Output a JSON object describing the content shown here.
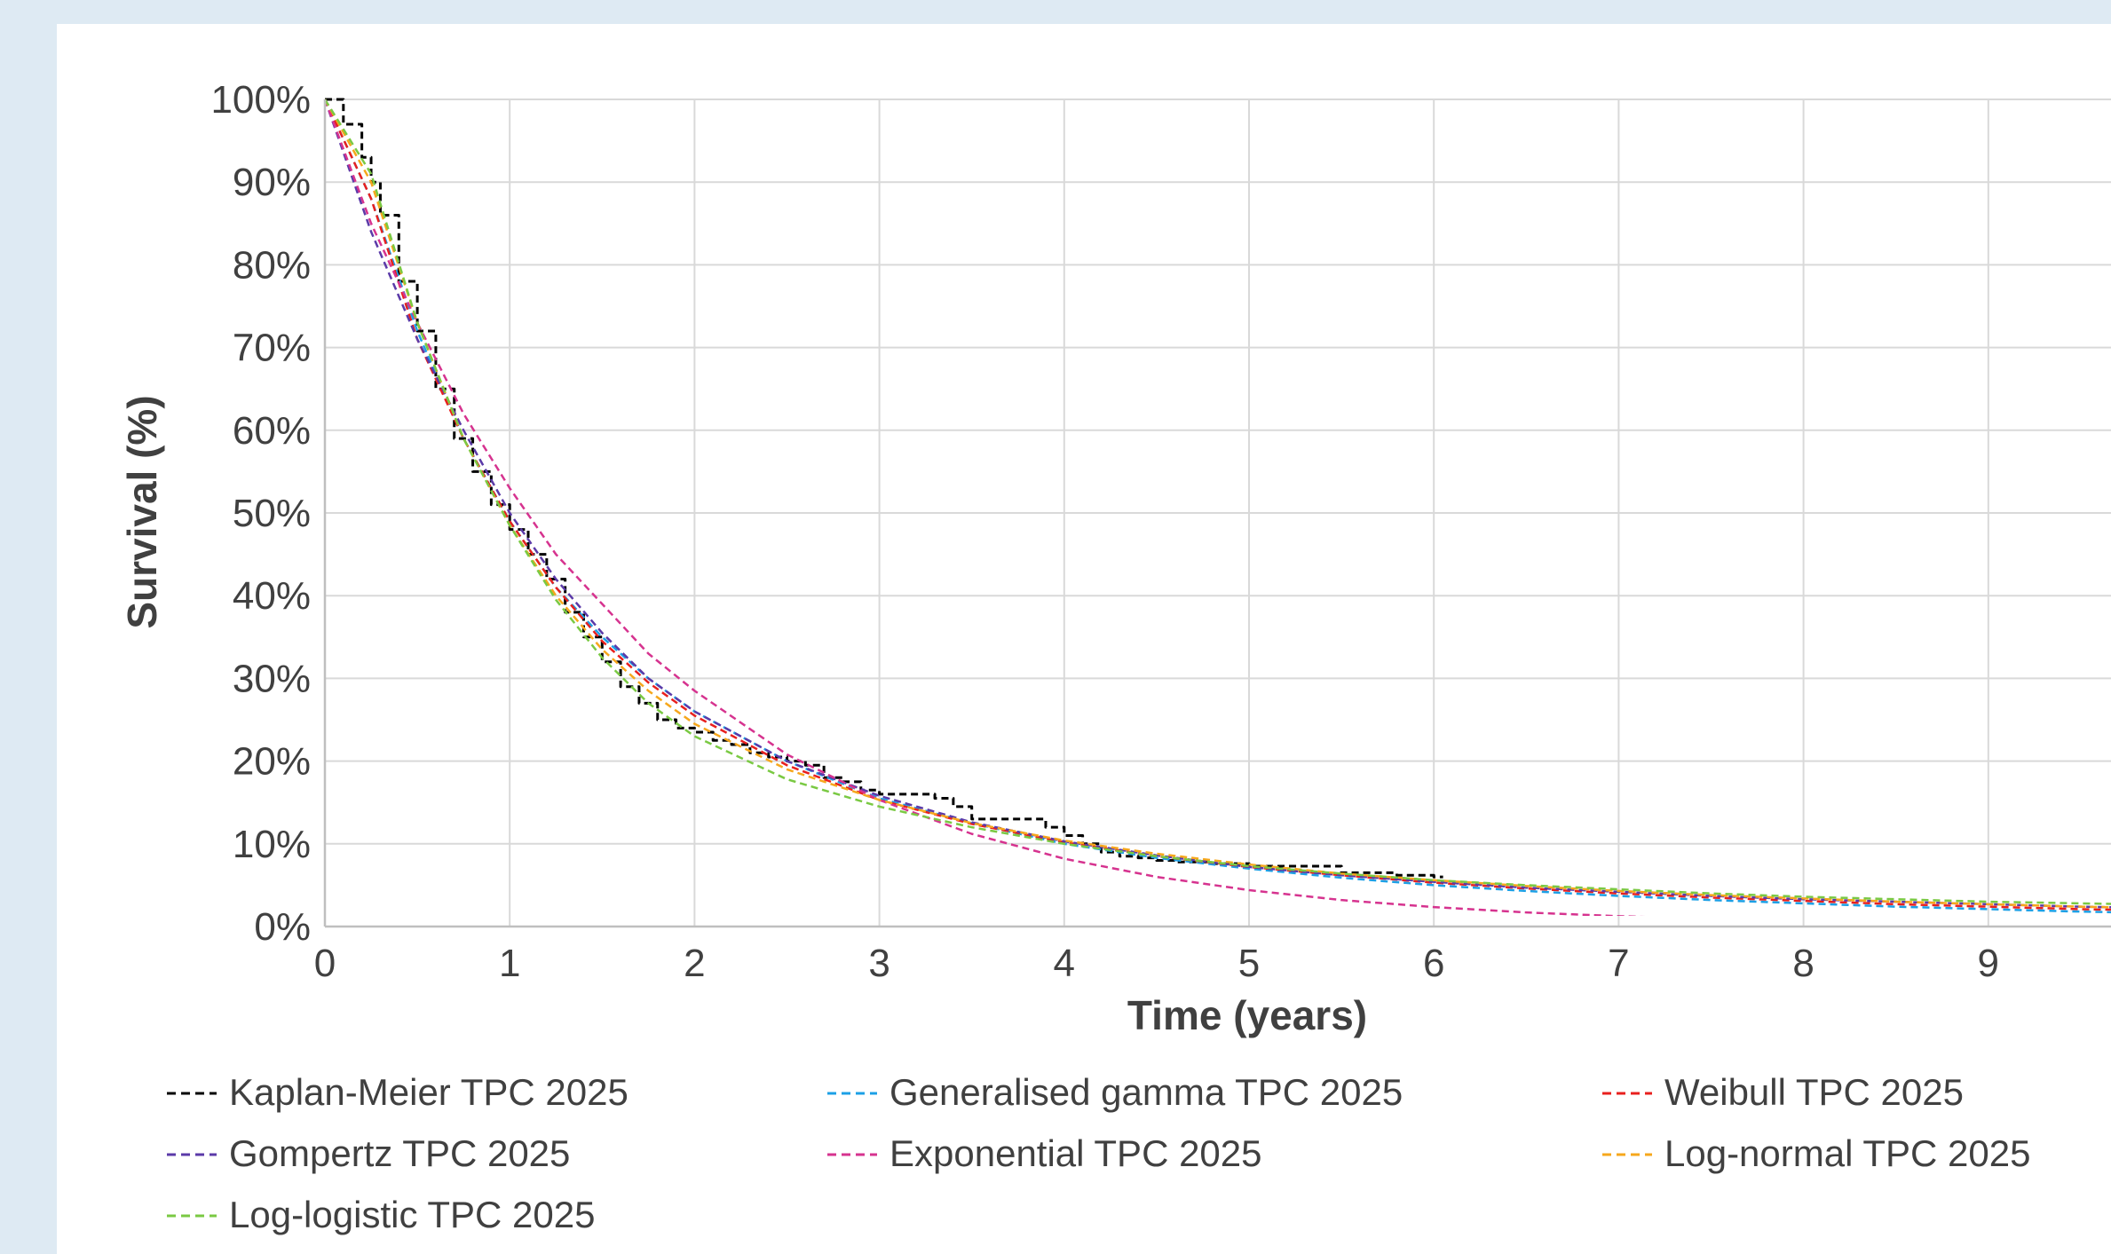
{
  "chart_data": {
    "type": "line",
    "title": "",
    "xlabel": "Time (years)",
    "ylabel": "Survival (%)",
    "xlim": [
      0,
      10
    ],
    "ylim": [
      0,
      100
    ],
    "x_ticks": [
      "0",
      "1",
      "2",
      "3",
      "4",
      "5",
      "6",
      "7",
      "8",
      "9"
    ],
    "y_ticks": [
      "0%",
      "10%",
      "20%",
      "30%",
      "40%",
      "50%",
      "60%",
      "70%",
      "80%",
      "90%",
      "100%"
    ],
    "grid": true,
    "legend_position": "bottom",
    "series": [
      {
        "name": "Kaplan-Meier TPC 2025",
        "color": "#000000",
        "style": "dashed-step",
        "x": [
          0,
          0.1,
          0.2,
          0.25,
          0.3,
          0.4,
          0.5,
          0.6,
          0.7,
          0.8,
          0.9,
          1.0,
          1.1,
          1.2,
          1.3,
          1.4,
          1.5,
          1.6,
          1.7,
          1.8,
          1.9,
          2.0,
          2.1,
          2.2,
          2.3,
          2.4,
          2.5,
          2.6,
          2.7,
          2.8,
          2.9,
          3.0,
          3.1,
          3.2,
          3.3,
          3.4,
          3.5,
          3.6,
          3.7,
          3.8,
          3.9,
          4.0,
          4.1,
          4.2,
          4.3,
          4.4,
          4.5,
          4.6,
          4.8,
          5.0,
          5.2,
          5.4,
          5.5,
          5.8,
          6.0,
          6.05
        ],
        "y": [
          100,
          97,
          93,
          90,
          86,
          78,
          72,
          65,
          59,
          55,
          51,
          48,
          45,
          42,
          38,
          35,
          32,
          29,
          27,
          25,
          24,
          23.5,
          22.5,
          22,
          21,
          20.5,
          20,
          19.5,
          18,
          17.5,
          16.5,
          16,
          16,
          16,
          15.5,
          14.5,
          13,
          13,
          13,
          13,
          12,
          11,
          10,
          9,
          8.5,
          8.3,
          8,
          7.8,
          7.6,
          7.3,
          7.3,
          7.3,
          6.5,
          6.2,
          6.0,
          6.0
        ]
      },
      {
        "name": "Generalised gamma TPC 2025",
        "color": "#1ca0e6",
        "style": "dashed",
        "x": [
          0,
          0.25,
          0.5,
          0.75,
          1,
          1.25,
          1.5,
          1.75,
          2,
          2.5,
          3,
          3.5,
          4,
          4.5,
          5,
          5.5,
          6,
          6.5,
          7,
          7.5,
          8,
          8.5,
          9,
          9.5,
          10
        ],
        "y": [
          100,
          88,
          72,
          59,
          49,
          41,
          35,
          30,
          26,
          20,
          15.5,
          12.5,
          10,
          8.3,
          7,
          5.9,
          5,
          4.3,
          3.7,
          3.2,
          2.8,
          2.4,
          2.1,
          1.8,
          1.6
        ]
      },
      {
        "name": "Weibull TPC 2025",
        "color": "#e8201e",
        "style": "dashed",
        "x": [
          0,
          0.25,
          0.5,
          0.75,
          1,
          1.25,
          1.5,
          1.75,
          2,
          2.5,
          3,
          3.5,
          4,
          4.5,
          5,
          5.5,
          6,
          6.5,
          7,
          7.5,
          8,
          8.5,
          9,
          9.5,
          10
        ],
        "y": [
          100,
          88,
          71,
          59,
          49,
          41,
          34.5,
          29.5,
          25.5,
          19.5,
          15.3,
          12.4,
          10.2,
          8.5,
          7.2,
          6.2,
          5.3,
          4.6,
          4,
          3.5,
          3.1,
          2.7,
          2.4,
          2.1,
          1.9
        ]
      },
      {
        "name": "Gompertz TPC 2025",
        "color": "#5b3aa8",
        "style": "dashed",
        "x": [
          0,
          0.25,
          0.5,
          0.75,
          1,
          1.25,
          1.5,
          1.75,
          2,
          2.5,
          3,
          3.5,
          4,
          4.5,
          5,
          5.5,
          6,
          6.5,
          7,
          7.5,
          8,
          8.5,
          9,
          9.5,
          10
        ],
        "y": [
          100,
          84,
          71,
          60,
          50,
          42,
          35.5,
          30,
          26,
          20,
          15.8,
          12.6,
          10.3,
          8.6,
          7.2,
          6.2,
          5.4,
          4.7,
          4.2,
          3.7,
          3.3,
          3,
          2.7,
          2.4,
          2.2
        ]
      },
      {
        "name": "Exponential TPC 2025",
        "color": "#d6338f",
        "style": "dashed",
        "x": [
          0,
          0.25,
          0.5,
          0.75,
          1,
          1.25,
          1.5,
          1.75,
          2,
          2.5,
          3,
          3.5,
          4,
          4.5,
          5,
          5.5,
          6,
          6.5,
          7,
          7.5,
          8,
          8.5,
          9,
          9.5,
          10
        ],
        "y": [
          100,
          85,
          73,
          62,
          53,
          45,
          39,
          33,
          28.5,
          20.8,
          15.3,
          11.2,
          8.2,
          6,
          4.4,
          3.2,
          2.35,
          1.7,
          1.25,
          0.92,
          0.68,
          0.5,
          0.36,
          0.27,
          0.2
        ]
      },
      {
        "name": "Log-normal TPC 2025",
        "color": "#f6a71c",
        "style": "dashed",
        "x": [
          0,
          0.25,
          0.5,
          0.75,
          1,
          1.25,
          1.5,
          1.75,
          2,
          2.5,
          3,
          3.5,
          4,
          4.5,
          5,
          5.5,
          6,
          6.5,
          7,
          7.5,
          8,
          8.5,
          9,
          9.5,
          10
        ],
        "y": [
          100,
          90,
          73,
          59,
          48.5,
          40,
          33.5,
          28.5,
          24.5,
          19,
          15.3,
          12.5,
          10.4,
          8.8,
          7.5,
          6.4,
          5.6,
          4.9,
          4.3,
          3.8,
          3.4,
          3,
          2.7,
          2.4,
          2.2
        ]
      },
      {
        "name": "Log-logistic TPC 2025",
        "color": "#7ac943",
        "style": "dashed",
        "x": [
          0,
          0.25,
          0.5,
          0.75,
          1,
          1.25,
          1.5,
          1.75,
          2,
          2.5,
          3,
          3.5,
          4,
          4.5,
          5,
          5.5,
          6,
          6.5,
          7,
          7.5,
          8,
          8.5,
          9,
          9.5,
          10
        ],
        "y": [
          100,
          91,
          73,
          59,
          48.5,
          39.5,
          32.5,
          27,
          23,
          17.8,
          14.5,
          12,
          10,
          8.5,
          7.3,
          6.4,
          5.6,
          5,
          4.5,
          4,
          3.6,
          3.3,
          3,
          2.8,
          2.6
        ]
      }
    ]
  }
}
